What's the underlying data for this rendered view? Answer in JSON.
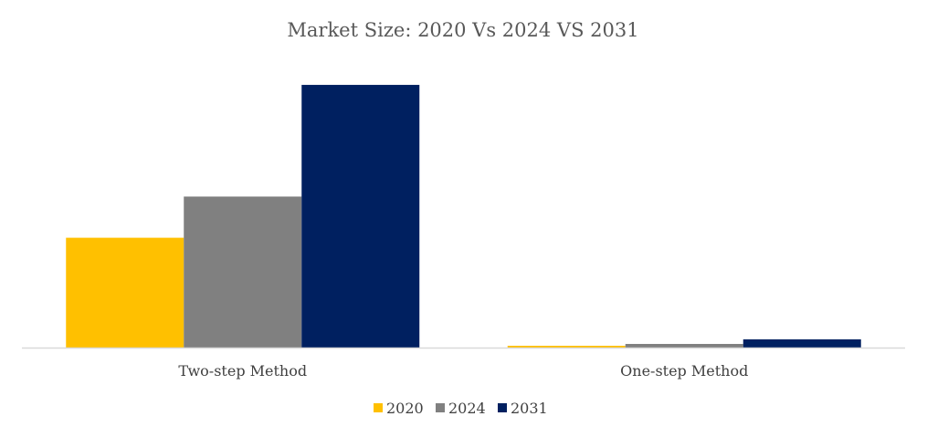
{
  "chart_data": {
    "type": "bar",
    "title": "Market Size: 2020 Vs 2024 VS 2031",
    "xlabel": "",
    "ylabel": "",
    "categories": [
      "Two-step Method",
      "One-step Method"
    ],
    "series": [
      {
        "name": "2020",
        "color": "#FFC000",
        "values": [
          120,
          2
        ]
      },
      {
        "name": "2024",
        "color": "#808080",
        "values": [
          165,
          4
        ]
      },
      {
        "name": "2031",
        "color": "#002060",
        "values": [
          287,
          9
        ]
      }
    ],
    "ylim": [
      0,
      300
    ],
    "grid": false,
    "y_axis_visible": false,
    "legend": "bottom"
  }
}
